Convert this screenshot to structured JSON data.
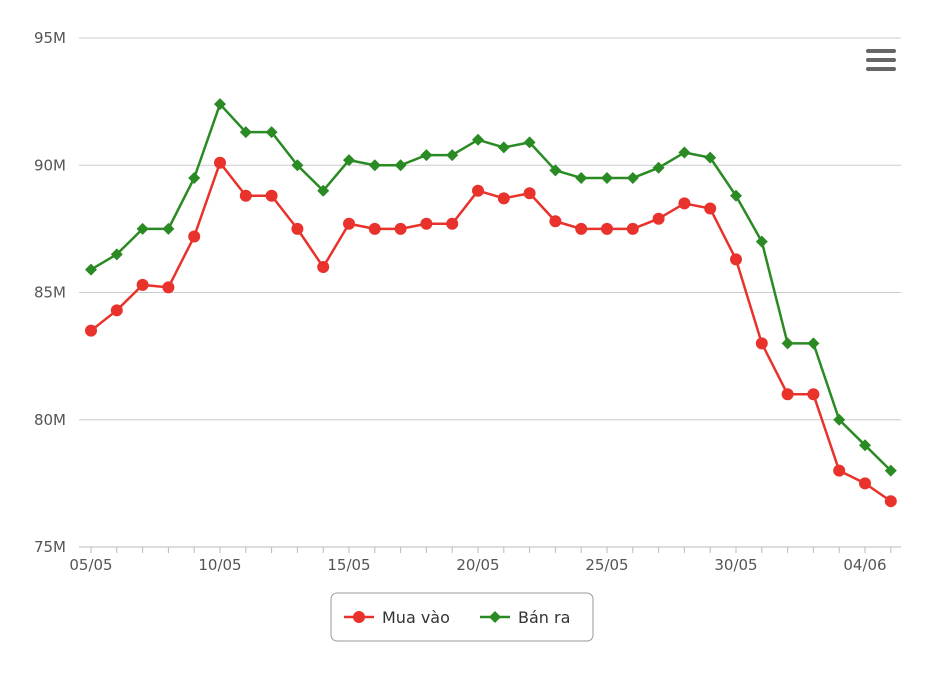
{
  "chart_data": {
    "type": "line",
    "categories": [
      "05/05",
      "06/05",
      "07/05",
      "08/05",
      "09/05",
      "10/05",
      "11/05",
      "12/05",
      "13/05",
      "14/05",
      "15/05",
      "16/05",
      "17/05",
      "18/05",
      "19/05",
      "20/05",
      "21/05",
      "22/05",
      "23/05",
      "24/05",
      "25/05",
      "26/05",
      "27/05",
      "28/05",
      "29/05",
      "30/05",
      "31/05",
      "01/06",
      "02/06",
      "03/06",
      "04/06",
      "05/06"
    ],
    "x_tick_labels": [
      "05/05",
      "10/05",
      "15/05",
      "20/05",
      "25/05",
      "30/05",
      "04/06"
    ],
    "y_tick_labels": [
      "75M",
      "80M",
      "85M",
      "90M",
      "95M"
    ],
    "y_ticks": [
      75000000,
      80000000,
      85000000,
      90000000,
      95000000
    ],
    "ylim": [
      75000000,
      95000000
    ],
    "grid": "horizontal",
    "legend_position": "bottom-center",
    "series": [
      {
        "name": "Mua vào",
        "color": "#e8322b",
        "marker": "circle",
        "values": [
          83500000,
          84300000,
          85300000,
          85200000,
          87200000,
          90100000,
          88800000,
          88800000,
          87500000,
          86000000,
          87700000,
          87500000,
          87500000,
          87700000,
          87700000,
          89000000,
          88700000,
          88900000,
          87800000,
          87500000,
          87500000,
          87500000,
          87900000,
          88500000,
          88300000,
          86300000,
          83000000,
          81000000,
          81000000,
          78000000,
          77500000,
          76800000
        ]
      },
      {
        "name": "Bán ra",
        "color": "#2a8a23",
        "marker": "diamond",
        "values": [
          85900000,
          86500000,
          87500000,
          87500000,
          89500000,
          92400000,
          91300000,
          91300000,
          90000000,
          89000000,
          90200000,
          90000000,
          90000000,
          90400000,
          90400000,
          91000000,
          90700000,
          90900000,
          89800000,
          89500000,
          89500000,
          89500000,
          89900000,
          90500000,
          90300000,
          88800000,
          87000000,
          83000000,
          83000000,
          80000000,
          79000000,
          78000000
        ]
      }
    ]
  },
  "menu_icon": "hamburger-menu-icon"
}
